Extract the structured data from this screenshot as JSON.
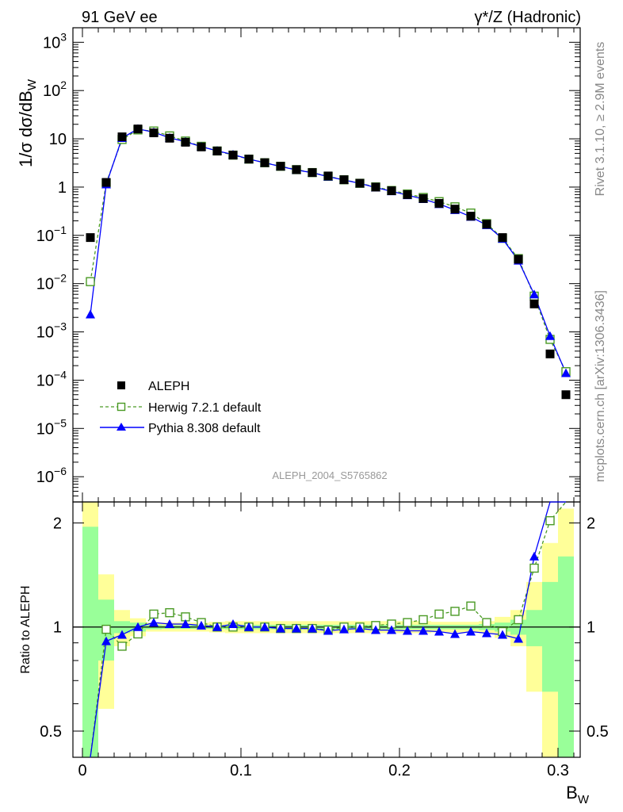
{
  "header": {
    "left": "91 GeV ee",
    "right": "γ*/Z (Hadronic)"
  },
  "side": {
    "rivet": "Rivet 3.1.10, ≥ 2.9M events",
    "mcplots": "mcplots.cern.ch [arXiv:1306.3436]"
  },
  "analysis_id": "ALEPH_2004_S5765862",
  "chart_data": {
    "type": "scatter",
    "ylabel": "1/σ  dσ/dB_W",
    "xlabel": "B_W",
    "ratio_ylabel": "Ratio to ALEPH",
    "xlim": [
      -0.006,
      0.314
    ],
    "ylim": [
      3e-07,
      2000
    ],
    "yscale": "log",
    "ratio_ylim": [
      0.42,
      2.3
    ],
    "ratio_yscale": "log",
    "x_ticks": [
      "0",
      "0.1",
      "0.2",
      "0.3"
    ],
    "y_ticks": [
      "10^-6",
      "10^-5",
      "10^-4",
      "10^-3",
      "10^-2",
      "10^-1",
      "1",
      "10",
      "10^2",
      "10^3"
    ],
    "ratio_ticks": [
      "0.5",
      "1",
      "2"
    ],
    "legend_position": "bottom-left",
    "x": [
      0.005,
      0.015,
      0.025,
      0.035,
      0.045,
      0.055,
      0.065,
      0.075,
      0.085,
      0.095,
      0.105,
      0.115,
      0.125,
      0.135,
      0.145,
      0.155,
      0.165,
      0.175,
      0.185,
      0.195,
      0.205,
      0.215,
      0.225,
      0.235,
      0.245,
      0.255,
      0.265,
      0.275,
      0.285,
      0.295,
      0.305
    ],
    "series": [
      {
        "name": "ALEPH",
        "color": "#000000",
        "marker": "filled-square",
        "values": [
          0.09,
          1.25,
          11.0,
          16.0,
          13.3,
          10.3,
          8.5,
          6.8,
          5.6,
          4.6,
          3.8,
          3.2,
          2.7,
          2.3,
          2.0,
          1.7,
          1.42,
          1.2,
          1.0,
          0.84,
          0.7,
          0.58,
          0.46,
          0.35,
          0.25,
          0.17,
          0.09,
          0.032,
          0.0038,
          0.00035,
          5e-05
        ],
        "ratio": [
          1,
          1,
          1,
          1,
          1,
          1,
          1,
          1,
          1,
          1,
          1,
          1,
          1,
          1,
          1,
          1,
          1,
          1,
          1,
          1,
          1,
          1,
          1,
          1,
          1,
          1,
          1,
          1,
          1,
          1,
          1
        ]
      },
      {
        "name": "Herwig 7.2.1 default",
        "color": "#4a9a24",
        "marker": "open-square",
        "line": "dashed",
        "values": [
          0.011,
          1.22,
          9.7,
          15.3,
          14.5,
          11.5,
          9.0,
          7.0,
          5.6,
          4.6,
          3.8,
          3.2,
          2.7,
          2.3,
          2.0,
          1.67,
          1.42,
          1.2,
          1.01,
          0.85,
          0.72,
          0.61,
          0.5,
          0.39,
          0.29,
          0.175,
          0.087,
          0.033,
          0.0055,
          0.0007,
          0.00015
        ],
        "ratio": [
          0.12,
          0.985,
          0.88,
          0.955,
          1.09,
          1.1,
          1.07,
          1.03,
          1.0,
          1.0,
          1.0,
          1.0,
          0.99,
          0.99,
          0.99,
          0.98,
          1.0,
          1.0,
          1.01,
          1.02,
          1.03,
          1.05,
          1.09,
          1.11,
          1.15,
          1.03,
          0.97,
          1.05,
          1.48,
          2.03,
          3.0
        ]
      },
      {
        "name": "Pythia 8.308 default",
        "color": "#0000ff",
        "marker": "filled-triangle",
        "line": "solid",
        "values": [
          0.0023,
          1.14,
          10.4,
          16.1,
          13.7,
          10.5,
          8.7,
          6.9,
          5.65,
          4.72,
          3.8,
          3.2,
          2.67,
          2.27,
          1.98,
          1.65,
          1.4,
          1.19,
          0.98,
          0.82,
          0.68,
          0.565,
          0.445,
          0.335,
          0.243,
          0.163,
          0.085,
          0.03,
          0.006,
          0.00082,
          0.00014
        ],
        "ratio": [
          0.03,
          0.91,
          0.95,
          1.0,
          1.03,
          1.02,
          1.02,
          1.01,
          1.0,
          1.02,
          1.0,
          1.0,
          0.99,
          0.99,
          0.99,
          0.975,
          0.985,
          0.99,
          0.98,
          0.98,
          0.975,
          0.975,
          0.97,
          0.955,
          0.97,
          0.96,
          0.95,
          0.925,
          1.6,
          2.6,
          3.0
        ]
      }
    ],
    "bands": {
      "green_halfwidth": [
        0.95,
        0.2,
        0.04,
        0.03,
        0.015,
        0.012,
        0.012,
        0.012,
        0.012,
        0.015,
        0.015,
        0.015,
        0.015,
        0.015,
        0.015,
        0.015,
        0.015,
        0.015,
        0.015,
        0.015,
        0.015,
        0.015,
        0.015,
        0.015,
        0.015,
        0.02,
        0.03,
        0.05,
        0.12,
        0.35,
        0.6
      ],
      "yellow_halfwidth": [
        1.5,
        0.42,
        0.12,
        0.06,
        0.03,
        0.03,
        0.03,
        0.03,
        0.035,
        0.04,
        0.04,
        0.04,
        0.04,
        0.04,
        0.04,
        0.04,
        0.04,
        0.04,
        0.04,
        0.04,
        0.04,
        0.04,
        0.035,
        0.035,
        0.035,
        0.04,
        0.07,
        0.12,
        0.35,
        0.75,
        1.2
      ]
    }
  }
}
